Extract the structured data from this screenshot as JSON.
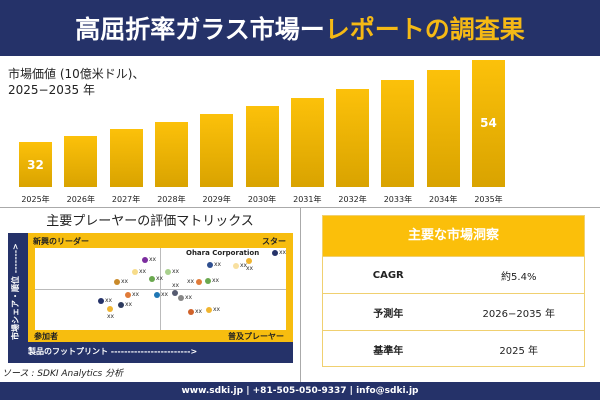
{
  "header": {
    "title_main": "高屈折率ガラス市場ー",
    "title_accent": "レポートの調査果"
  },
  "chart_data": {
    "type": "bar",
    "title": "市場価値 (10億米ドル)、\n2025−2035 年",
    "categories": [
      "2025年",
      "2026年",
      "2027年",
      "2028年",
      "2029年",
      "2030年",
      "2031年",
      "2032年",
      "2033年",
      "2034年",
      "2035年"
    ],
    "values": [
      32,
      33.7,
      35.5,
      37.4,
      39.5,
      41.6,
      43.9,
      46.2,
      48.7,
      51.4,
      54
    ],
    "data_labels": {
      "0": "32",
      "10": "54"
    },
    "ylim": [
      20,
      54
    ],
    "color": "#f5b915"
  },
  "matrix": {
    "title": "主要プレーヤーの評価マトリックス",
    "quadrants": {
      "top_left": "新興のリーダー",
      "top_right": "スター",
      "bottom_left": "参加者",
      "bottom_right": "普及プレーヤー"
    },
    "highlight": "Ohara Corporation",
    "x_axis": "製品のフットプリント ------------------------>",
    "y_axis": "市場シェア・順位 ------->",
    "point_label": "xx"
  },
  "source": "ソース : SDKI Analytics 分析",
  "insights": {
    "title": "主要な市場洞察",
    "rows": [
      {
        "k": "CAGR",
        "v": "約5.4%"
      },
      {
        "k": "予測年",
        "v": "2026−2035 年"
      },
      {
        "k": "基準年",
        "v": "2025 年"
      }
    ]
  },
  "footer": "www.sdki.jp | +81-505-050-9337 | info@sdki.jp"
}
